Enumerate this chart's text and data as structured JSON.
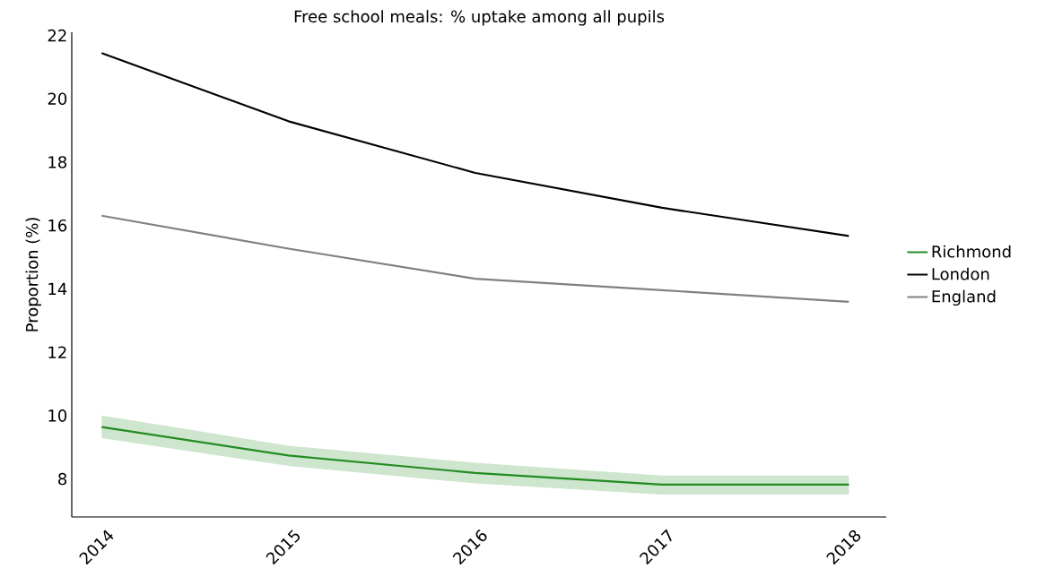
{
  "chart_data": {
    "type": "line",
    "title": "Free school meals: % uptake among all pupils",
    "ylabel": "Proportion (%)",
    "categories": [
      "2014",
      "2015",
      "2016",
      "2017",
      "2018"
    ],
    "series": [
      {
        "name": "Richmond",
        "color": "#228b22",
        "values": [
          9.64,
          8.74,
          8.19,
          7.82,
          7.82
        ],
        "lower": [
          9.29,
          8.41,
          7.86,
          7.51,
          7.51
        ],
        "upper": [
          10.0,
          9.05,
          8.51,
          8.11,
          8.11
        ]
      },
      {
        "name": "London",
        "color": "#000000",
        "values": [
          21.44,
          19.29,
          17.66,
          16.56,
          15.67
        ]
      },
      {
        "name": "England",
        "color": "#808080",
        "values": [
          16.31,
          15.27,
          14.32,
          13.96,
          13.59
        ]
      }
    ],
    "ylim": [
      6.8,
      22.1
    ],
    "yticks": [
      8,
      10,
      12,
      14,
      16,
      18,
      20,
      22
    ],
    "grid": false,
    "legend": "right",
    "marker": "none",
    "line_style": "solid"
  }
}
